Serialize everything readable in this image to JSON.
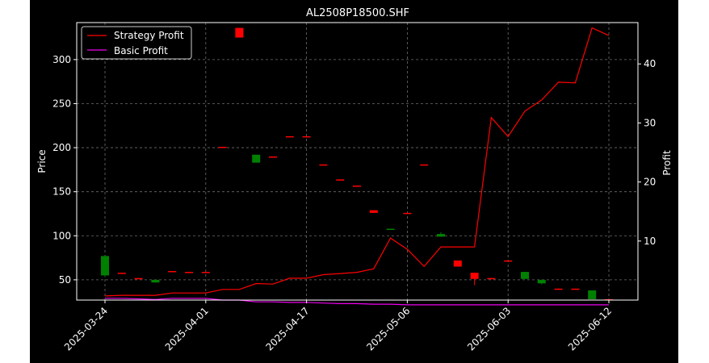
{
  "chart_data": {
    "type": "candlestick",
    "title": "AL2508P18500.SHF",
    "xlabel": "",
    "ylabel_left": "Price",
    "ylabel_right": "Profit",
    "x_tick_labels": [
      "2025-03-24",
      "2025-04-01",
      "2025-04-17",
      "2025-05-06",
      "2025-06-03",
      "2025-06-12"
    ],
    "x_tick_positions": [
      0,
      6,
      12,
      18,
      24,
      30
    ],
    "y_left_ticks": [
      50,
      100,
      150,
      200,
      250,
      300
    ],
    "y_left_range": [
      27,
      342
    ],
    "y_right_ticks": [
      10,
      20,
      30,
      40
    ],
    "y_right_range": [
      0,
      47
    ],
    "grid": true,
    "legend_position": "top-left",
    "colors": {
      "background": "#000000",
      "up": "#008000",
      "down": "#ff0000",
      "strategy": "#ff0000",
      "basic": "#ee00ee",
      "grid": "#6e6e6e",
      "text": "#ffffff"
    },
    "candles": [
      {
        "i": 0,
        "open": 55,
        "close": 77,
        "high": 77,
        "low": 53
      },
      {
        "i": 1,
        "open": 58,
        "close": 57.5,
        "high": 58,
        "low": 57.5
      },
      {
        "i": 2,
        "open": 52,
        "close": 51.5,
        "high": 52,
        "low": 51.5
      },
      {
        "i": 3,
        "open": 47,
        "close": 50,
        "high": 50,
        "low": 47
      },
      {
        "i": 4,
        "open": 60,
        "close": 59.5,
        "high": 60,
        "low": 59.5
      },
      {
        "i": 5,
        "open": 59,
        "close": 58.5,
        "high": 59,
        "low": 58.5
      },
      {
        "i": 6,
        "open": 59,
        "close": 58.5,
        "high": 59,
        "low": 58.5
      },
      {
        "i": 7,
        "open": 201,
        "close": 200.5,
        "high": 201,
        "low": 200.5
      },
      {
        "i": 8,
        "open": 336,
        "close": 325,
        "high": 336,
        "low": 325
      },
      {
        "i": 9,
        "open": 183,
        "close": 192,
        "high": 192,
        "low": 183
      },
      {
        "i": 10,
        "open": 190,
        "close": 189.5,
        "high": 190,
        "low": 189.5
      },
      {
        "i": 11,
        "open": 213,
        "close": 212.5,
        "high": 213,
        "low": 212.5
      },
      {
        "i": 12,
        "open": 213,
        "close": 212.5,
        "high": 213,
        "low": 212.5
      },
      {
        "i": 13,
        "open": 181,
        "close": 180.5,
        "high": 181,
        "low": 180.5
      },
      {
        "i": 14,
        "open": 164,
        "close": 163.5,
        "high": 164,
        "low": 163.5
      },
      {
        "i": 15,
        "open": 157,
        "close": 156.5,
        "high": 157,
        "low": 156.5
      },
      {
        "i": 16,
        "open": 129,
        "close": 126,
        "high": 129,
        "low": 126
      },
      {
        "i": 17,
        "open": 107,
        "close": 108,
        "high": 108,
        "low": 107
      },
      {
        "i": 18,
        "open": 126,
        "close": 125.5,
        "high": 126,
        "low": 125.5
      },
      {
        "i": 19,
        "open": 181,
        "close": 180.5,
        "high": 181,
        "low": 180.5
      },
      {
        "i": 20,
        "open": 99,
        "close": 102,
        "high": 104,
        "low": 99
      },
      {
        "i": 21,
        "open": 72,
        "close": 65,
        "high": 72,
        "low": 65
      },
      {
        "i": 22,
        "open": 58,
        "close": 51,
        "high": 58,
        "low": 44
      },
      {
        "i": 23,
        "open": 52,
        "close": 51.5,
        "high": 52,
        "low": 51.5
      },
      {
        "i": 24,
        "open": 72,
        "close": 71.5,
        "high": 72,
        "low": 71.5
      },
      {
        "i": 25,
        "open": 51,
        "close": 59,
        "high": 59,
        "low": 51
      },
      {
        "i": 26,
        "open": 46,
        "close": 50,
        "high": 50,
        "low": 45
      },
      {
        "i": 27,
        "open": 40,
        "close": 39.5,
        "high": 40,
        "low": 39.5
      },
      {
        "i": 28,
        "open": 40,
        "close": 39,
        "high": 40,
        "low": 39
      },
      {
        "i": 29,
        "open": 28,
        "close": 38,
        "high": 38,
        "low": 28
      },
      {
        "i": 30,
        "open": 28,
        "close": 27.5,
        "high": 28,
        "low": 27.5
      }
    ],
    "series": [
      {
        "name": "Strategy Profit",
        "axis": "right",
        "values": [
          0.7,
          0.8,
          0.8,
          0.8,
          1.2,
          1.2,
          1.2,
          1.8,
          1.8,
          2.8,
          2.7,
          3.7,
          3.7,
          4.3,
          4.5,
          4.7,
          5.3,
          10.5,
          8.6,
          5.7,
          9,
          9,
          9,
          30.9,
          27.7,
          32,
          33.9,
          36.9,
          36.8,
          46.1,
          44.8
        ]
      },
      {
        "name": "Basic Profit",
        "axis": "right",
        "values": [
          0.3,
          0.3,
          0.2,
          0.1,
          0.3,
          0.3,
          0.3,
          0,
          0,
          -0.3,
          -0.3,
          -0.4,
          -0.4,
          -0.5,
          -0.6,
          -0.6,
          -0.7,
          -0.7,
          -0.8,
          -0.8,
          -0.8,
          -0.8,
          -0.8,
          -0.8,
          -0.8,
          -0.8,
          -0.8,
          -0.8,
          -0.8,
          -0.8,
          -0.8
        ]
      }
    ]
  }
}
